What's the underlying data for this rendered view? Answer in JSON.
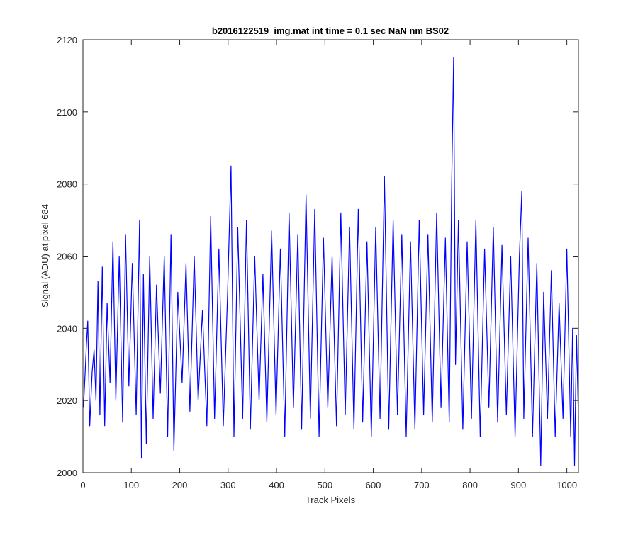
{
  "chart_data": {
    "type": "line",
    "title": "b2016122519_img.mat int time = 0.1 sec  NaN nm BS02",
    "xlabel": "Track Pixels",
    "ylabel": "Signal (ADU) at pixel 684",
    "xlim": [
      0,
      1024
    ],
    "ylim": [
      2000,
      2120
    ],
    "xticks": [
      0,
      100,
      200,
      300,
      400,
      500,
      600,
      700,
      800,
      900,
      1000
    ],
    "yticks": [
      2000,
      2020,
      2040,
      2060,
      2080,
      2100,
      2120
    ],
    "grid": false,
    "series": [
      {
        "color": "#0000ff",
        "x": [
          1,
          4,
          7,
          10,
          14,
          19,
          23,
          27,
          31,
          35,
          40,
          45,
          50,
          56,
          62,
          68,
          75,
          82,
          88,
          95,
          102,
          110,
          117,
          121,
          125,
          131,
          138,
          145,
          152,
          160,
          168,
          175,
          182,
          188,
          196,
          205,
          213,
          221,
          230,
          238,
          247,
          256,
          264,
          272,
          281,
          290,
          299,
          306,
          312,
          320,
          330,
          338,
          346,
          355,
          364,
          372,
          380,
          390,
          399,
          408,
          417,
          426,
          435,
          444,
          452,
          461,
          470,
          479,
          488,
          497,
          506,
          515,
          524,
          533,
          542,
          551,
          560,
          569,
          578,
          587,
          596,
          605,
          614,
          623,
          632,
          641,
          650,
          659,
          668,
          677,
          686,
          695,
          704,
          713,
          722,
          731,
          740,
          749,
          757,
          762,
          766,
          770,
          776,
          785,
          794,
          803,
          812,
          821,
          830,
          839,
          848,
          857,
          866,
          875,
          884,
          893,
          902,
          907,
          911,
          920,
          929,
          938,
          946,
          952,
          960,
          968,
          976,
          984,
          992,
          1000,
          1008,
          1012,
          1016,
          1020,
          1024
        ],
        "y": [
          2018,
          2026,
          2035,
          2042,
          2013,
          2028,
          2034,
          2020,
          2053,
          2016,
          2057,
          2013,
          2047,
          2025,
          2064,
          2020,
          2060,
          2014,
          2066,
          2024,
          2058,
          2016,
          2070,
          2004,
          2055,
          2008,
          2060,
          2015,
          2052,
          2022,
          2060,
          2010,
          2066,
          2006,
          2050,
          2025,
          2058,
          2017,
          2060,
          2020,
          2045,
          2013,
          2071,
          2015,
          2062,
          2013,
          2050,
          2085,
          2010,
          2068,
          2015,
          2070,
          2012,
          2060,
          2020,
          2055,
          2014,
          2067,
          2016,
          2062,
          2010,
          2072,
          2018,
          2066,
          2012,
          2077,
          2015,
          2073,
          2010,
          2065,
          2018,
          2060,
          2013,
          2072,
          2016,
          2068,
          2012,
          2073,
          2014,
          2064,
          2010,
          2068,
          2015,
          2082,
          2012,
          2070,
          2016,
          2066,
          2010,
          2064,
          2012,
          2070,
          2016,
          2066,
          2014,
          2072,
          2018,
          2065,
          2014,
          2080,
          2115,
          2030,
          2070,
          2012,
          2064,
          2015,
          2070,
          2010,
          2062,
          2018,
          2068,
          2014,
          2063,
          2016,
          2060,
          2010,
          2060,
          2078,
          2015,
          2065,
          2010,
          2058,
          2002,
          2050,
          2015,
          2056,
          2010,
          2047,
          2015,
          2062,
          2010,
          2040,
          2002,
          2038,
          2015
        ]
      }
    ]
  }
}
